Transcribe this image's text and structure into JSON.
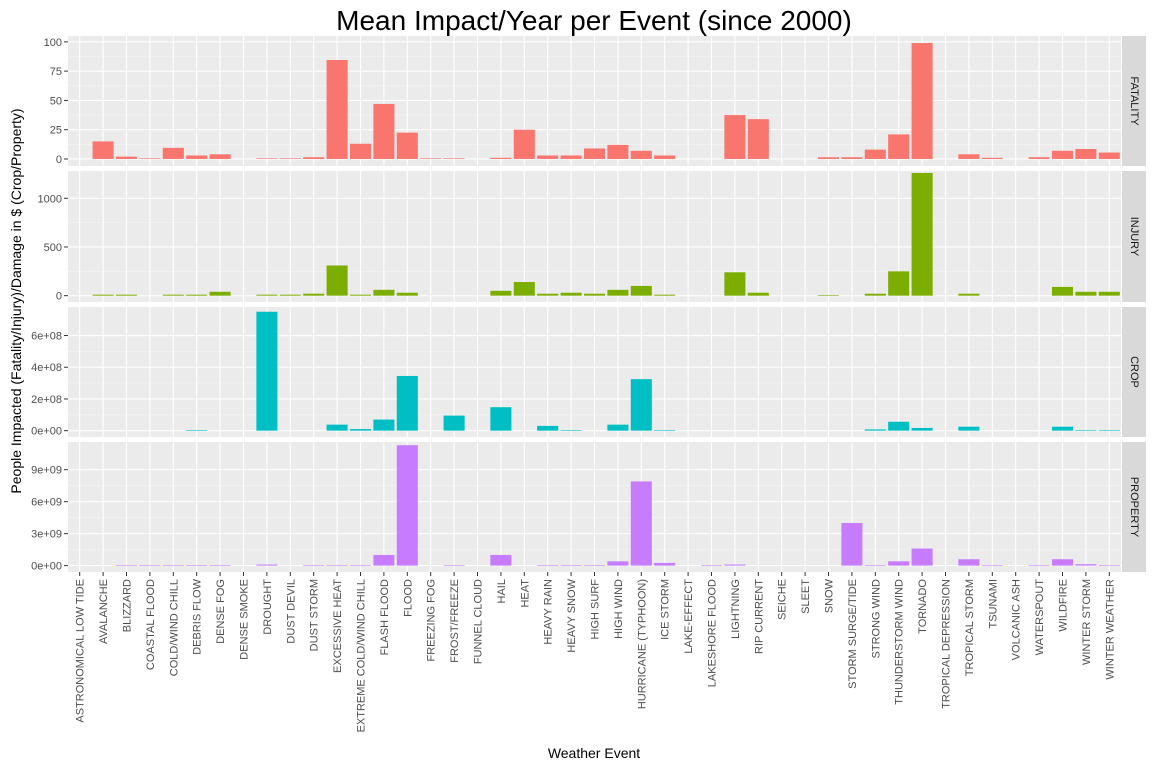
{
  "chart_data": {
    "type": "bar",
    "title": "Mean Impact/Year per Event (since 2000)",
    "xlabel": "Weather Event",
    "ylabel": "People Impacted (Fatality/Injury)/Damage in $ (Crop/Property)",
    "grid": true,
    "legend": "none",
    "categories": [
      "ASTRONOMICAL LOW TIDE",
      "AVALANCHE",
      "BLIZZARD",
      "COASTAL FLOOD",
      "COLD/WIND CHILL",
      "DEBRIS FLOW",
      "DENSE FOG",
      "DENSE SMOKE",
      "DROUGHT",
      "DUST DEVIL",
      "DUST STORM",
      "EXCESSIVE HEAT",
      "EXTREME COLD/WIND CHILL",
      "FLASH FLOOD",
      "FLOOD",
      "FREEZING FOG",
      "FROST/FREEZE",
      "FUNNEL CLOUD",
      "HAIL",
      "HEAT",
      "HEAVY RAIN",
      "HEAVY SNOW",
      "HIGH SURF",
      "HIGH WIND",
      "HURRICANE (TYPHOON)",
      "ICE STORM",
      "LAKE-EFFECT",
      "LAKESHORE FLOOD",
      "LIGHTNING",
      "RIP CURRENT",
      "SEICHE",
      "SLEET",
      "SNOW",
      "STORM SURGE/TIDE",
      "STRONG WIND",
      "THUNDERSTORM WIND",
      "TORNADO",
      "TROPICAL DEPRESSION",
      "TROPICAL STORM",
      "TSUNAMI",
      "VOLCANIC ASH",
      "WATERSPOUT",
      "WILDFIRE",
      "WINTER STORM",
      "WINTER WEATHER"
    ],
    "panels": [
      {
        "name": "FATALITY",
        "color": "#F8766D",
        "ylim": [
          -6,
          105
        ],
        "ticks": [
          0,
          25,
          50,
          75,
          100
        ],
        "tick_labels": [
          "0",
          "25",
          "50",
          "75",
          "100"
        ],
        "values": [
          0,
          15,
          2,
          0.5,
          9.5,
          3,
          4,
          0,
          0.5,
          0.5,
          1.5,
          84.5,
          13,
          47,
          22.5,
          0.3,
          0.3,
          0,
          1,
          25,
          3,
          3,
          9,
          12,
          7,
          3,
          0,
          0,
          37.5,
          34,
          0,
          0,
          1.5,
          1.5,
          8,
          21,
          99,
          0,
          4,
          1,
          0,
          1.5,
          7,
          8.5,
          5.5
        ]
      },
      {
        "name": "INJURY",
        "color": "#7CAE00",
        "ylim": [
          -65,
          1280
        ],
        "ticks": [
          0,
          500,
          1000
        ],
        "tick_labels": [
          "0",
          "500",
          "1000"
        ],
        "values": [
          0,
          10,
          10,
          0,
          10,
          10,
          40,
          0,
          10,
          10,
          20,
          310,
          10,
          60,
          30,
          0,
          0,
          0,
          50,
          140,
          20,
          30,
          20,
          60,
          100,
          10,
          0,
          0,
          240,
          30,
          0,
          0,
          5,
          0,
          20,
          250,
          1260,
          0,
          20,
          0,
          0,
          0,
          90,
          40,
          40
        ]
      },
      {
        "name": "CROP",
        "color": "#00BFC4",
        "ylim": [
          -40000000,
          780000000
        ],
        "ticks": [
          0,
          200000000,
          400000000,
          600000000
        ],
        "tick_labels": [
          "0e+00",
          "2e+08",
          "4e+08",
          "6e+08"
        ],
        "values": [
          0,
          0,
          0,
          0,
          0,
          1000000,
          0,
          0,
          750000000,
          0,
          0,
          38000000,
          10000000,
          70000000,
          345000000,
          0,
          95000000,
          0,
          148000000,
          0,
          30000000,
          1000000,
          0,
          38000000,
          325000000,
          1000000,
          0,
          0,
          0,
          0,
          0,
          0,
          0,
          0,
          8000000,
          56000000,
          17000000,
          0,
          25000000,
          0,
          0,
          0,
          25000000,
          2000000,
          1000000
        ]
      },
      {
        "name": "PROPERTY",
        "color": "#C77CFF",
        "ylim": [
          -600000000,
          11600000000
        ],
        "ticks": [
          0,
          3000000000,
          6000000000,
          9000000000
        ],
        "tick_labels": [
          "0e+00",
          "3e+09",
          "6e+09",
          "9e+09"
        ],
        "values": [
          0,
          0,
          10000000,
          40000000,
          10000000,
          10000000,
          10000000,
          0,
          100000000,
          0,
          10000000,
          20000000,
          20000000,
          1000000000,
          11300000000,
          0,
          10000000,
          0,
          1000000000,
          0,
          30000000,
          30000000,
          10000000,
          400000000,
          7900000000,
          250000000,
          0,
          10000000,
          100000000,
          0,
          0,
          0,
          0,
          4000000000,
          30000000,
          400000000,
          1600000000,
          0,
          600000000,
          10000000,
          0,
          10000000,
          600000000,
          130000000,
          20000000
        ]
      }
    ]
  }
}
